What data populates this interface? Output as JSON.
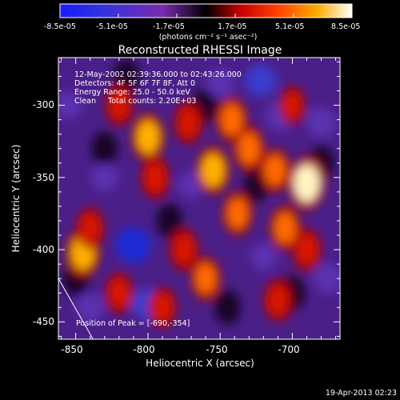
{
  "chart_data": {
    "type": "heatmap",
    "title": "Reconstructed RHESSI Image",
    "xlabel": "Heliocentric X (arcsec)",
    "ylabel": "Heliocentric Y (arcsec)",
    "xlim": [
      -862,
      -667
    ],
    "ylim": [
      -462,
      -267
    ],
    "x_ticks": [
      -850,
      -800,
      -750,
      -700
    ],
    "y_ticks": [
      -450,
      -400,
      -350,
      -300
    ],
    "x_tick_labels": [
      "-850",
      "-800",
      "-750",
      "-700"
    ],
    "y_tick_labels": [
      "-450",
      "-400",
      "-350",
      "-300"
    ],
    "colorbar": {
      "range": [
        -8.5e-05,
        8.5e-05
      ],
      "tick_labels": [
        "-8.5e-05",
        "-5.1e-05",
        "-1.7e-05",
        "1.7e-05",
        "5.1e-05",
        "8.5e-05"
      ],
      "unit_label": "(photons cm⁻² s⁻¹ asec⁻²)",
      "colormap": "blue-purple-black-red-orange-yellow-white"
    },
    "annotations": [
      "12-May-2002 02:39:36.000 to 02:43:26.000",
      "Detectors: 4F 5F 6F 7F 8F, Att 0",
      "Energy Range: 25.0 - 50.0 keV",
      "Clean     Total counts: 2.20E+03"
    ],
    "peak_label": "Position of Peak = [-690,-354]",
    "peak_position": [
      -690,
      -354
    ],
    "hot_regions": [
      {
        "x": -845,
        "y": -402,
        "level": 0.85
      },
      {
        "x": -840,
        "y": -385,
        "level": 0.55
      },
      {
        "x": -820,
        "y": -300,
        "level": 0.55
      },
      {
        "x": -800,
        "y": -322,
        "level": 0.8
      },
      {
        "x": -795,
        "y": -350,
        "level": 0.6
      },
      {
        "x": -772,
        "y": -312,
        "level": 0.6
      },
      {
        "x": -755,
        "y": -345,
        "level": 0.8
      },
      {
        "x": -742,
        "y": -310,
        "level": 0.7
      },
      {
        "x": -738,
        "y": -375,
        "level": 0.65
      },
      {
        "x": -730,
        "y": -330,
        "level": 0.7
      },
      {
        "x": -712,
        "y": -345,
        "level": 0.65
      },
      {
        "x": -705,
        "y": -385,
        "level": 0.7
      },
      {
        "x": -690,
        "y": -354,
        "level": 1.0
      },
      {
        "x": -690,
        "y": -400,
        "level": 0.6
      },
      {
        "x": -710,
        "y": -435,
        "level": 0.6
      },
      {
        "x": -775,
        "y": -400,
        "level": 0.6
      },
      {
        "x": -760,
        "y": -420,
        "level": 0.65
      },
      {
        "x": -790,
        "y": -440,
        "level": 0.55
      },
      {
        "x": -820,
        "y": -430,
        "level": 0.55
      },
      {
        "x": -700,
        "y": -300,
        "level": 0.45
      }
    ],
    "cold_regions": [
      {
        "x": -810,
        "y": -397,
        "level": 0.85
      },
      {
        "x": -800,
        "y": -438,
        "level": 0.7
      },
      {
        "x": -722,
        "y": -283,
        "level": 0.7
      },
      {
        "x": -708,
        "y": -307,
        "level": 0.55
      },
      {
        "x": -680,
        "y": -312,
        "level": 0.55
      },
      {
        "x": -675,
        "y": -420,
        "level": 0.55
      },
      {
        "x": -750,
        "y": -285,
        "level": 0.45
      },
      {
        "x": -830,
        "y": -350,
        "level": 0.4
      },
      {
        "x": -770,
        "y": -355,
        "level": 0.4
      },
      {
        "x": -720,
        "y": -405,
        "level": 0.4
      },
      {
        "x": -855,
        "y": -300,
        "level": 0.4
      },
      {
        "x": -840,
        "y": -440,
        "level": 0.45
      }
    ],
    "limb_line": {
      "from": [
        -862,
        -420
      ],
      "to": [
        -838,
        -462
      ]
    }
  },
  "footer_date": "19-Apr-2013 02:23"
}
